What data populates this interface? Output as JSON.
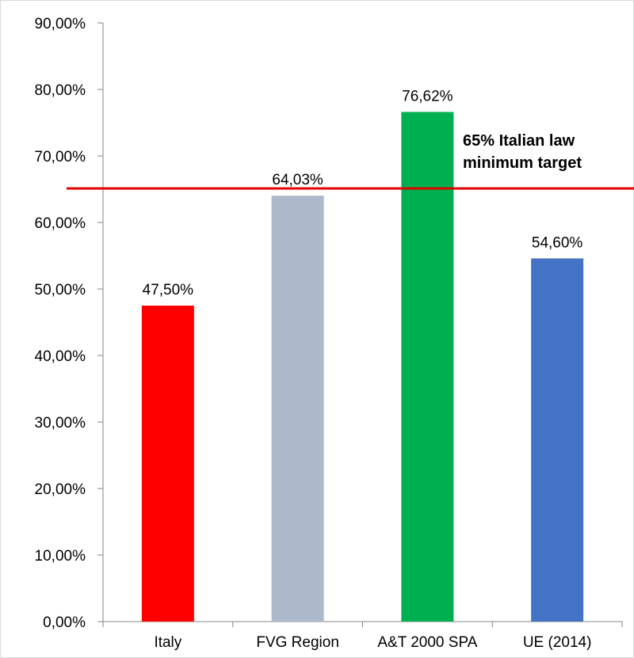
{
  "chart_data": {
    "type": "bar",
    "categories": [
      "Italy",
      "FVG Region",
      "A&T 2000 SPA",
      "UE (2014)"
    ],
    "values": [
      47.5,
      64.03,
      76.62,
      54.6
    ],
    "value_labels": [
      "47,50%",
      "64,03%",
      "76,62%",
      "54,60%"
    ],
    "colors": [
      "#ff0000",
      "#adb9ca",
      "#00b050",
      "#4472c4"
    ],
    "ylim": [
      0,
      90
    ],
    "yticks": [
      0,
      10,
      20,
      30,
      40,
      50,
      60,
      70,
      80,
      90
    ],
    "ytick_labels": [
      "0,00%",
      "10,00%",
      "20,00%",
      "30,00%",
      "40,00%",
      "50,00%",
      "60,00%",
      "70,00%",
      "80,00%",
      "90,00%"
    ],
    "title": "",
    "xlabel": "",
    "ylabel": "",
    "grid": false,
    "legend": "none",
    "reference_line": {
      "value": 65,
      "color": "#e00000",
      "label_lines": [
        "65% Italian law",
        "minimum target"
      ]
    }
  }
}
